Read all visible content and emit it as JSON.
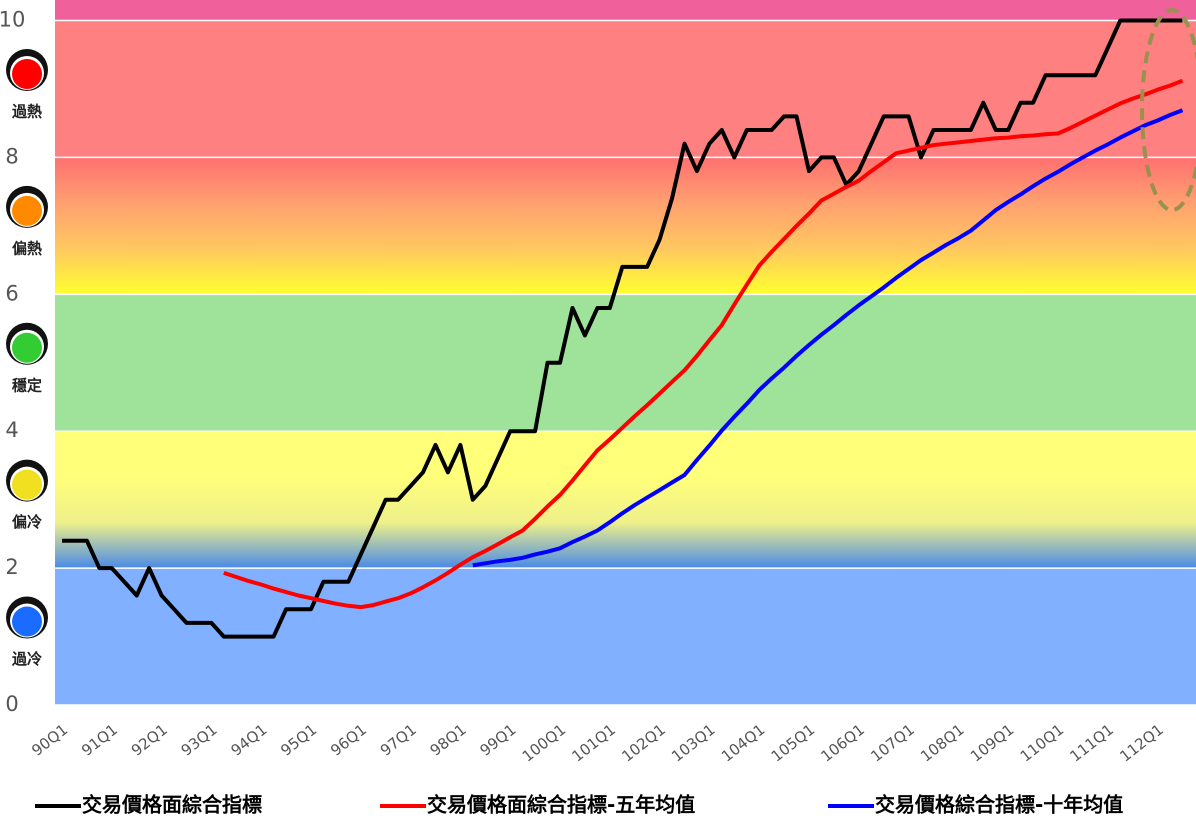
{
  "chart_data": {
    "type": "line",
    "categories": [
      "90Q1",
      null,
      null,
      null,
      "91Q1",
      null,
      null,
      null,
      "92Q1",
      null,
      null,
      null,
      "93Q1",
      null,
      null,
      null,
      "94Q1",
      null,
      null,
      null,
      "95Q1",
      null,
      null,
      null,
      "96Q1",
      null,
      null,
      null,
      "97Q1",
      null,
      null,
      null,
      "98Q1",
      null,
      null,
      null,
      "99Q1",
      null,
      null,
      null,
      "100Q1",
      null,
      null,
      null,
      "101Q1",
      null,
      null,
      null,
      "102Q1",
      null,
      null,
      null,
      "103Q1",
      null,
      null,
      null,
      "104Q1",
      null,
      null,
      null,
      "105Q1",
      null,
      null,
      null,
      "106Q1",
      null,
      null,
      null,
      "107Q1",
      null,
      null,
      null,
      "108Q1",
      null,
      null,
      null,
      "109Q1",
      null,
      null,
      null,
      "110Q1",
      null,
      null,
      null,
      "111Q1",
      null,
      null,
      null,
      "112Q1",
      null,
      null
    ],
    "series": [
      {
        "name": "交易價格面綜合指標",
        "color": "#000000",
        "values": [
          2.4,
          2.4,
          2.4,
          2.0,
          2.0,
          1.8,
          1.6,
          2.0,
          1.6,
          1.4,
          1.2,
          1.2,
          1.2,
          1.0,
          1.0,
          1.0,
          1.0,
          1.0,
          1.4,
          1.4,
          1.4,
          1.8,
          1.8,
          1.8,
          2.2,
          2.6,
          3.0,
          3.0,
          3.2,
          3.4,
          3.8,
          3.4,
          3.8,
          3.0,
          3.2,
          3.6,
          4.0,
          4.0,
          4.0,
          5.0,
          5.0,
          5.8,
          5.4,
          5.8,
          5.8,
          6.4,
          6.4,
          6.4,
          6.8,
          7.4,
          8.2,
          7.8,
          8.2,
          8.4,
          8.0,
          8.4,
          8.4,
          8.4,
          8.6,
          8.6,
          7.8,
          8.0,
          8.0,
          7.6,
          7.8,
          8.2,
          8.6,
          8.6,
          8.6,
          8.0,
          8.4,
          8.4,
          8.4,
          8.4,
          8.8,
          8.4,
          8.4,
          8.8,
          8.8,
          9.2,
          9.2,
          9.2,
          9.2,
          9.2,
          9.6,
          10,
          10,
          10,
          10,
          10,
          10
        ]
      },
      {
        "name": "交易價格面綜合指標-五年均值",
        "color": "#ff0000",
        "values": [
          null,
          null,
          null,
          null,
          null,
          null,
          null,
          null,
          null,
          null,
          null,
          null,
          null,
          1.93,
          1.87,
          1.81,
          1.76,
          1.7,
          1.65,
          1.6,
          1.56,
          1.52,
          1.48,
          1.45,
          1.43,
          1.46,
          1.51,
          1.56,
          1.63,
          1.72,
          1.82,
          1.93,
          2.05,
          2.16,
          2.25,
          2.35,
          2.45,
          2.55,
          2.72,
          2.9,
          3.07,
          3.28,
          3.5,
          3.72,
          3.88,
          4.05,
          4.22,
          4.38,
          4.55,
          4.72,
          4.89,
          5.1,
          5.33,
          5.55,
          5.85,
          6.14,
          6.42,
          6.62,
          6.81,
          7.0,
          7.18,
          7.37,
          7.47,
          7.57,
          7.66,
          7.8,
          7.93,
          8.06,
          8.1,
          8.14,
          8.18,
          8.2,
          8.22,
          8.24,
          8.26,
          8.28,
          8.29,
          8.31,
          8.32,
          8.34,
          8.35,
          8.43,
          8.52,
          8.61,
          8.7,
          8.79,
          8.86,
          8.92,
          8.99,
          9.05,
          9.12
        ]
      },
      {
        "name": "交易價格綜合指標-十年均值",
        "color": "#0000ff",
        "values": [
          null,
          null,
          null,
          null,
          null,
          null,
          null,
          null,
          null,
          null,
          null,
          null,
          null,
          null,
          null,
          null,
          null,
          null,
          null,
          null,
          null,
          null,
          null,
          null,
          null,
          null,
          null,
          null,
          null,
          null,
          null,
          null,
          null,
          2.04,
          2.07,
          2.1,
          2.12,
          2.15,
          2.2,
          2.24,
          2.29,
          2.38,
          2.46,
          2.55,
          2.67,
          2.8,
          2.92,
          3.03,
          3.14,
          3.25,
          3.36,
          3.58,
          3.79,
          4.01,
          4.21,
          4.4,
          4.6,
          4.77,
          4.93,
          5.1,
          5.26,
          5.41,
          5.55,
          5.7,
          5.84,
          5.97,
          6.1,
          6.24,
          6.37,
          6.5,
          6.61,
          6.72,
          6.82,
          6.93,
          7.08,
          7.23,
          7.35,
          7.46,
          7.58,
          7.69,
          7.79,
          7.9,
          8.0,
          8.1,
          8.19,
          8.29,
          8.38,
          8.47,
          8.54,
          8.62,
          8.69
        ]
      }
    ],
    "ylim": [
      0,
      10.3
    ],
    "yticks": [
      0,
      2,
      4,
      6,
      8,
      10
    ],
    "grid": true,
    "grid_color": "#ffffff",
    "zones": [
      {
        "from": 0,
        "to": 2,
        "label": "過冷",
        "colors": [
          "#80b0ff"
        ],
        "light": "#1a6cff"
      },
      {
        "from": 2,
        "to": 4,
        "label": "偏冷",
        "colors": [
          "#ffff7a",
          "#ffff7a",
          "#eef08a",
          "#4a8ae8"
        ],
        "light": "#f0e020"
      },
      {
        "from": 4,
        "to": 6,
        "label": "穩定",
        "colors": [
          "#9fe39b"
        ],
        "light": "#33cc33"
      },
      {
        "from": 6,
        "to": 8,
        "label": "偏熱",
        "colors": [
          "#ff7070",
          "#ffa070",
          "#ffc860",
          "#ffff30"
        ],
        "light": "#ff8a00"
      },
      {
        "from": 8,
        "to": 10,
        "label": "過熱",
        "colors": [
          "#ff8080"
        ],
        "light": "#ff0000"
      },
      {
        "from": 10,
        "to": 10.3,
        "colors": [
          "#f0609a"
        ]
      }
    ],
    "legend": "bottom"
  }
}
